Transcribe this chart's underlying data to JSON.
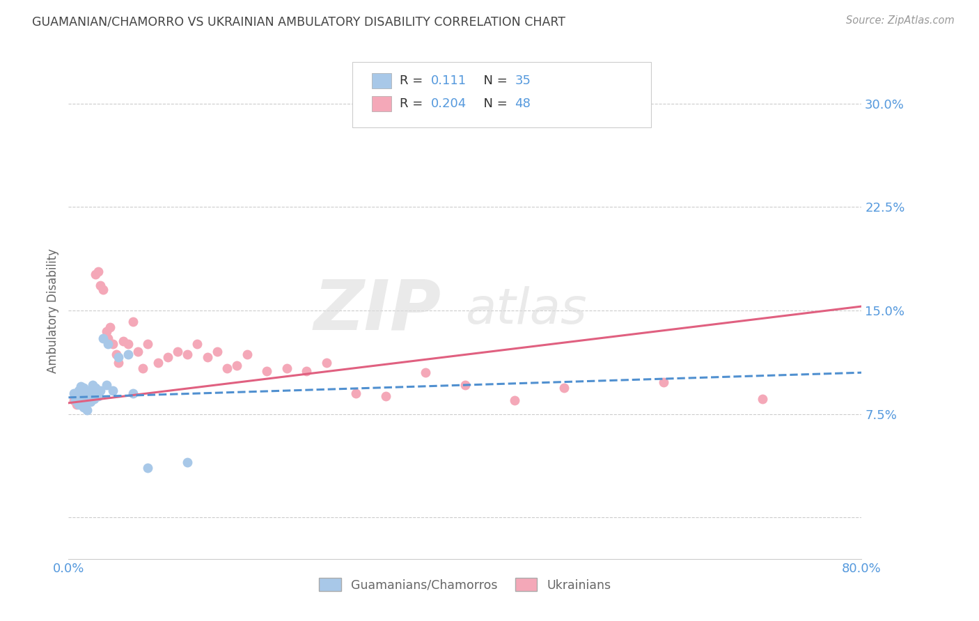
{
  "title": "GUAMANIAN/CHAMORRO VS UKRAINIAN AMBULATORY DISABILITY CORRELATION CHART",
  "source": "Source: ZipAtlas.com",
  "ylabel": "Ambulatory Disability",
  "xlim": [
    0.0,
    0.8
  ],
  "ylim": [
    -0.03,
    0.33
  ],
  "yticks": [
    0.0,
    0.075,
    0.15,
    0.225,
    0.3
  ],
  "ytick_labels": [
    "",
    "7.5%",
    "15.0%",
    "22.5%",
    "30.0%"
  ],
  "xticks": [
    0.0,
    0.8
  ],
  "xtick_labels": [
    "0.0%",
    "80.0%"
  ],
  "guam_R": 0.111,
  "guam_N": 35,
  "ukr_R": 0.204,
  "ukr_N": 48,
  "guam_color": "#a8c8e8",
  "ukr_color": "#f4a8b8",
  "guam_line_color": "#5090d0",
  "ukr_line_color": "#e06080",
  "grid_color": "#cccccc",
  "background_color": "#ffffff",
  "title_color": "#444444",
  "axis_label_color": "#666666",
  "tick_color": "#5599dd",
  "watermark_zip": "ZIP",
  "watermark_atlas": "atlas",
  "guam_x": [
    0.005,
    0.007,
    0.008,
    0.01,
    0.01,
    0.011,
    0.012,
    0.013,
    0.014,
    0.015,
    0.015,
    0.016,
    0.017,
    0.018,
    0.019,
    0.02,
    0.021,
    0.022,
    0.023,
    0.024,
    0.025,
    0.026,
    0.027,
    0.028,
    0.03,
    0.032,
    0.035,
    0.038,
    0.04,
    0.045,
    0.05,
    0.06,
    0.065,
    0.08,
    0.12
  ],
  "guam_y": [
    0.09,
    0.085,
    0.088,
    0.092,
    0.082,
    0.086,
    0.095,
    0.088,
    0.083,
    0.094,
    0.08,
    0.088,
    0.092,
    0.086,
    0.078,
    0.09,
    0.088,
    0.084,
    0.092,
    0.096,
    0.088,
    0.086,
    0.094,
    0.09,
    0.088,
    0.092,
    0.13,
    0.096,
    0.126,
    0.092,
    0.116,
    0.118,
    0.09,
    0.036,
    0.04
  ],
  "ukr_x": [
    0.005,
    0.008,
    0.01,
    0.012,
    0.014,
    0.016,
    0.018,
    0.02,
    0.022,
    0.025,
    0.027,
    0.03,
    0.032,
    0.035,
    0.038,
    0.04,
    0.042,
    0.045,
    0.048,
    0.05,
    0.055,
    0.06,
    0.065,
    0.07,
    0.075,
    0.08,
    0.09,
    0.1,
    0.11,
    0.12,
    0.13,
    0.14,
    0.15,
    0.16,
    0.17,
    0.18,
    0.2,
    0.22,
    0.24,
    0.26,
    0.29,
    0.32,
    0.36,
    0.4,
    0.45,
    0.5,
    0.6,
    0.7
  ],
  "ukr_y": [
    0.085,
    0.082,
    0.09,
    0.088,
    0.084,
    0.086,
    0.09,
    0.088,
    0.086,
    0.092,
    0.176,
    0.178,
    0.168,
    0.165,
    0.135,
    0.13,
    0.138,
    0.126,
    0.118,
    0.112,
    0.128,
    0.126,
    0.142,
    0.12,
    0.108,
    0.126,
    0.112,
    0.116,
    0.12,
    0.118,
    0.126,
    0.116,
    0.12,
    0.108,
    0.11,
    0.118,
    0.106,
    0.108,
    0.106,
    0.112,
    0.09,
    0.088,
    0.105,
    0.096,
    0.085,
    0.094,
    0.098,
    0.086
  ]
}
